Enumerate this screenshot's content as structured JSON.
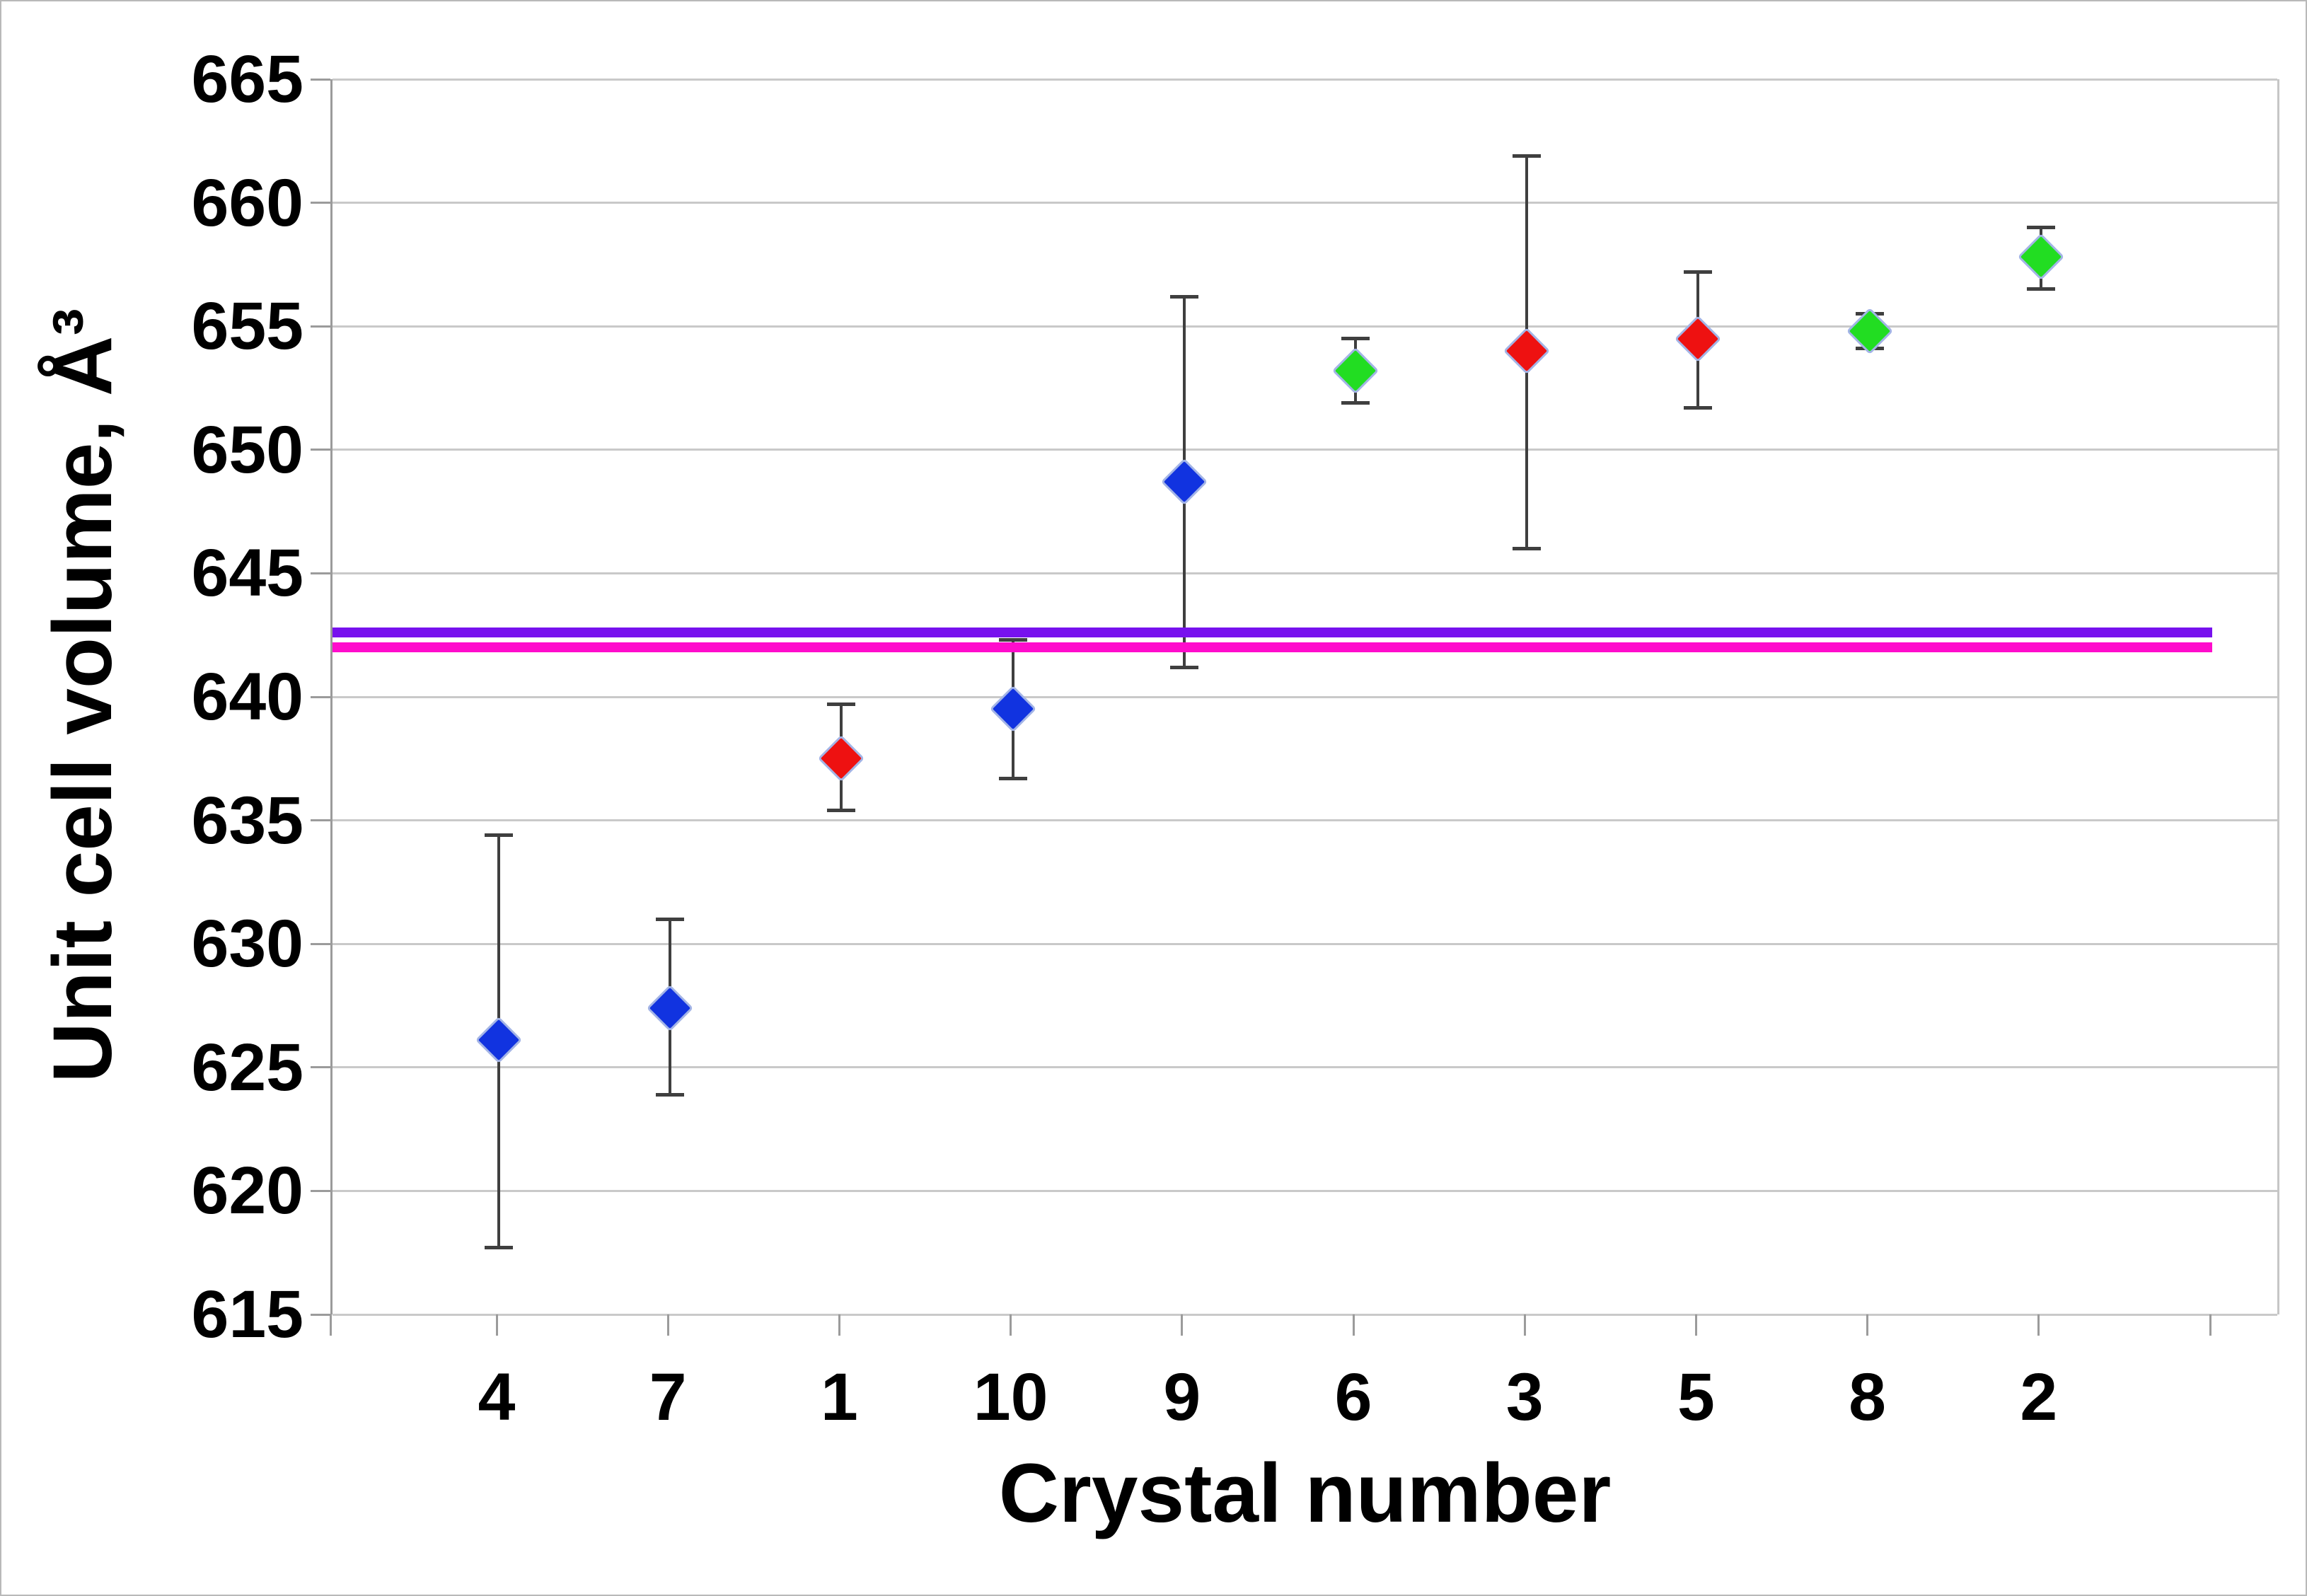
{
  "chart_data": {
    "type": "scatter",
    "title": "",
    "xlabel": "Crystal number",
    "ylabel": "Unit cell volume, Å³",
    "ylim": [
      615,
      665
    ],
    "ytick_interval": 5,
    "ytick_labels": [
      "615",
      "620",
      "625",
      "630",
      "635",
      "640",
      "645",
      "650",
      "655",
      "660",
      "665"
    ],
    "categories": [
      "4",
      "7",
      "1",
      "10",
      "9",
      "6",
      "3",
      "5",
      "8",
      "2"
    ],
    "grid": "horizontal-only",
    "legend": "none",
    "points": [
      {
        "category": "4",
        "value": 626.1,
        "err_low": 617.7,
        "err_high": 634.4,
        "group": "blue"
      },
      {
        "category": "7",
        "value": 627.4,
        "err_low": 623.9,
        "err_high": 631.0,
        "group": "blue"
      },
      {
        "category": "1",
        "value": 637.5,
        "err_low": 635.4,
        "err_high": 639.7,
        "group": "red"
      },
      {
        "category": "10",
        "value": 639.5,
        "err_low": 636.7,
        "err_high": 642.3,
        "group": "blue"
      },
      {
        "category": "9",
        "value": 648.7,
        "err_low": 641.2,
        "err_high": 656.2,
        "group": "blue"
      },
      {
        "category": "6",
        "value": 653.2,
        "err_low": 651.9,
        "err_high": 654.5,
        "group": "green"
      },
      {
        "category": "3",
        "value": 654.0,
        "err_low": 646.0,
        "err_high": 661.9,
        "group": "red"
      },
      {
        "category": "5",
        "value": 654.5,
        "err_low": 651.7,
        "err_high": 657.2,
        "group": "red"
      },
      {
        "category": "8",
        "value": 654.8,
        "err_low": 654.1,
        "err_high": 655.5,
        "group": "green"
      },
      {
        "category": "2",
        "value": 657.8,
        "err_low": 656.5,
        "err_high": 659.0,
        "group": "green"
      }
    ],
    "reference_lines": [
      {
        "name": "purple-reference-line",
        "value": 642.6,
        "color": "#7711ee"
      },
      {
        "name": "magenta-reference-line",
        "value": 642.0,
        "color": "#ff0ccc"
      }
    ],
    "marker": {
      "shape": "diamond",
      "colors": {
        "blue": "#1133e0",
        "red": "#ee1111",
        "green": "#22dd22"
      },
      "outline": "#a3b4e6"
    }
  }
}
